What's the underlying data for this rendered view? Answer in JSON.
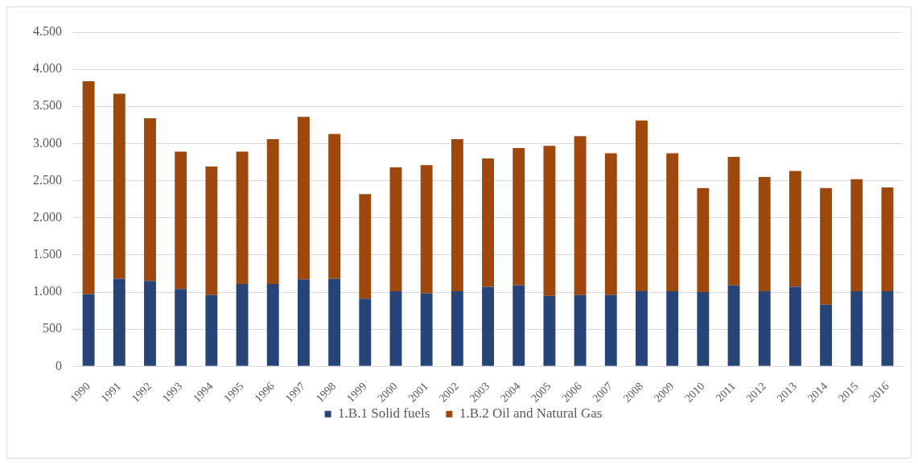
{
  "chart_data": {
    "type": "bar",
    "stacked": true,
    "categories": [
      "1990",
      "1991",
      "1992",
      "1993",
      "1994",
      "1995",
      "1996",
      "1997",
      "1998",
      "1999",
      "2000",
      "2001",
      "2002",
      "2003",
      "2004",
      "2005",
      "2006",
      "2007",
      "2008",
      "2009",
      "2010",
      "2011",
      "2012",
      "2013",
      "2014",
      "2015",
      "2016"
    ],
    "series": [
      {
        "name": "1.B.1 Solid fuels",
        "color": "#264478",
        "values": [
          970,
          1180,
          1150,
          1040,
          960,
          1110,
          1110,
          1170,
          1180,
          910,
          1010,
          980,
          1010,
          1070,
          1090,
          950,
          960,
          960,
          1010,
          1010,
          1000,
          1090,
          1010,
          1070,
          830,
          1010,
          1010
        ]
      },
      {
        "name": "1.B.2 Oil and Natural Gas",
        "color": "#9e480e",
        "values": [
          2870,
          2490,
          2190,
          1850,
          1730,
          1780,
          1950,
          2190,
          1950,
          1410,
          1670,
          1730,
          2050,
          1730,
          1850,
          2020,
          2140,
          1910,
          2300,
          1860,
          1400,
          1730,
          1540,
          1560,
          1570,
          1510,
          1400
        ]
      }
    ],
    "ylim": [
      0,
      4500
    ],
    "yticks": [
      0,
      500,
      {
        "value": 1000,
        "label": "1.000"
      },
      {
        "value": 1500,
        "label": "1.500"
      },
      {
        "value": 2000,
        "label": "2.000"
      },
      {
        "value": 2500,
        "label": "2.500"
      },
      {
        "value": 3000,
        "label": "3.000"
      },
      {
        "value": 3500,
        "label": "3.500"
      },
      {
        "value": 4000,
        "label": "4.000"
      },
      {
        "value": 4500,
        "label": "4.500"
      }
    ],
    "grid": "y",
    "legend": "bottom"
  }
}
